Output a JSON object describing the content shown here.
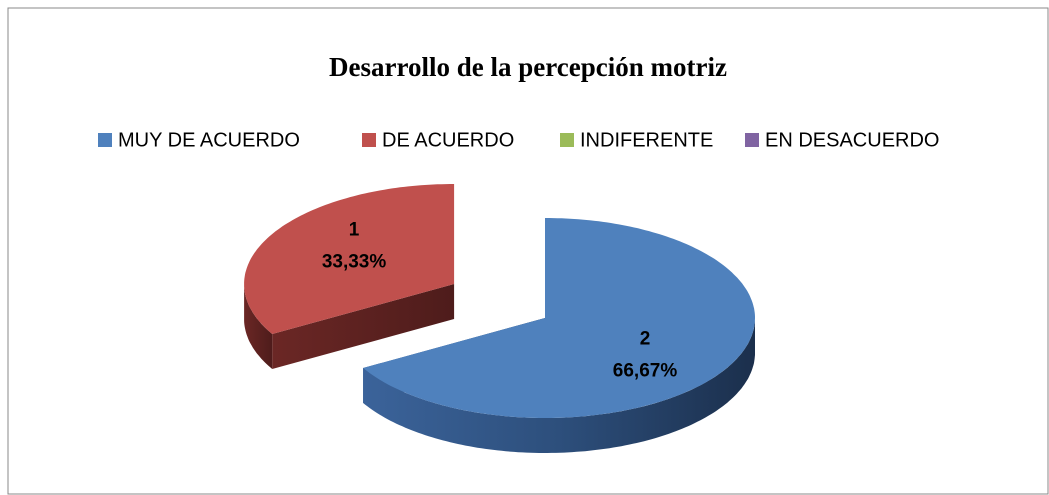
{
  "chart_data": {
    "type": "pie3d",
    "title": "Desarrollo de la percepción motriz",
    "categories": [
      "MUY DE ACUERDO",
      "DE ACUERDO",
      "INDIFERENTE",
      "EN DESACUERDO"
    ],
    "values": [
      2,
      1,
      0,
      0
    ],
    "percentages": [
      66.67,
      33.33,
      0,
      0
    ],
    "percentage_labels": [
      "66,67%",
      "33,33%",
      null,
      null
    ],
    "colors": [
      "#4f81bd",
      "#c0504d",
      "#9bbb59",
      "#8064a2"
    ],
    "legend": "top"
  }
}
